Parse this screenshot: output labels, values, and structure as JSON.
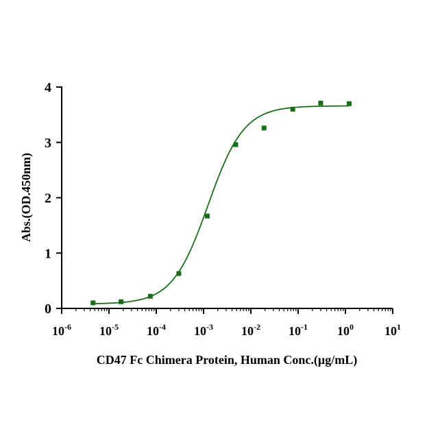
{
  "chart_data": {
    "type": "scatter",
    "title": "",
    "xlabel": "CD47 Fc Chimera Protein, Human Conc.(µg/mL)",
    "ylabel": "Abs.(OD.450nm)",
    "xscale": "log",
    "xlim": [
      1e-06,
      10
    ],
    "ylim": [
      0,
      4
    ],
    "x_ticks": [
      {
        "value": 1e-06,
        "base": "10",
        "exp": "-6"
      },
      {
        "value": 1e-05,
        "base": "10",
        "exp": "-5"
      },
      {
        "value": 0.0001,
        "base": "10",
        "exp": "-4"
      },
      {
        "value": 0.001,
        "base": "10",
        "exp": "-3"
      },
      {
        "value": 0.01,
        "base": "10",
        "exp": "-2"
      },
      {
        "value": 0.1,
        "base": "10",
        "exp": "-1"
      },
      {
        "value": 1,
        "base": "10",
        "exp": "0"
      },
      {
        "value": 10,
        "base": "10",
        "exp": "1"
      }
    ],
    "y_ticks": [
      0,
      1,
      2,
      3,
      4
    ],
    "grid": false,
    "legend": "none",
    "series": [
      {
        "marker": "square",
        "color": "#1a6e1a",
        "points": [
          {
            "x": 4.6e-06,
            "y": 0.1
          },
          {
            "x": 1.8e-05,
            "y": 0.12
          },
          {
            "x": 7.5e-05,
            "y": 0.22
          },
          {
            "x": 0.0003,
            "y": 0.63
          },
          {
            "x": 0.0012,
            "y": 1.67
          },
          {
            "x": 0.0048,
            "y": 2.96
          },
          {
            "x": 0.019,
            "y": 3.26
          },
          {
            "x": 0.077,
            "y": 3.6
          },
          {
            "x": 0.3,
            "y": 3.71
          },
          {
            "x": 1.2,
            "y": 3.7
          }
        ]
      }
    ],
    "fit_curve": {
      "model": "4PL",
      "color": "#1a6e1a",
      "bottom": 0.08,
      "top": 3.66,
      "ec50": 0.00125,
      "hill": 1.15,
      "x_range": [
        4.6e-06,
        1.2
      ]
    }
  }
}
